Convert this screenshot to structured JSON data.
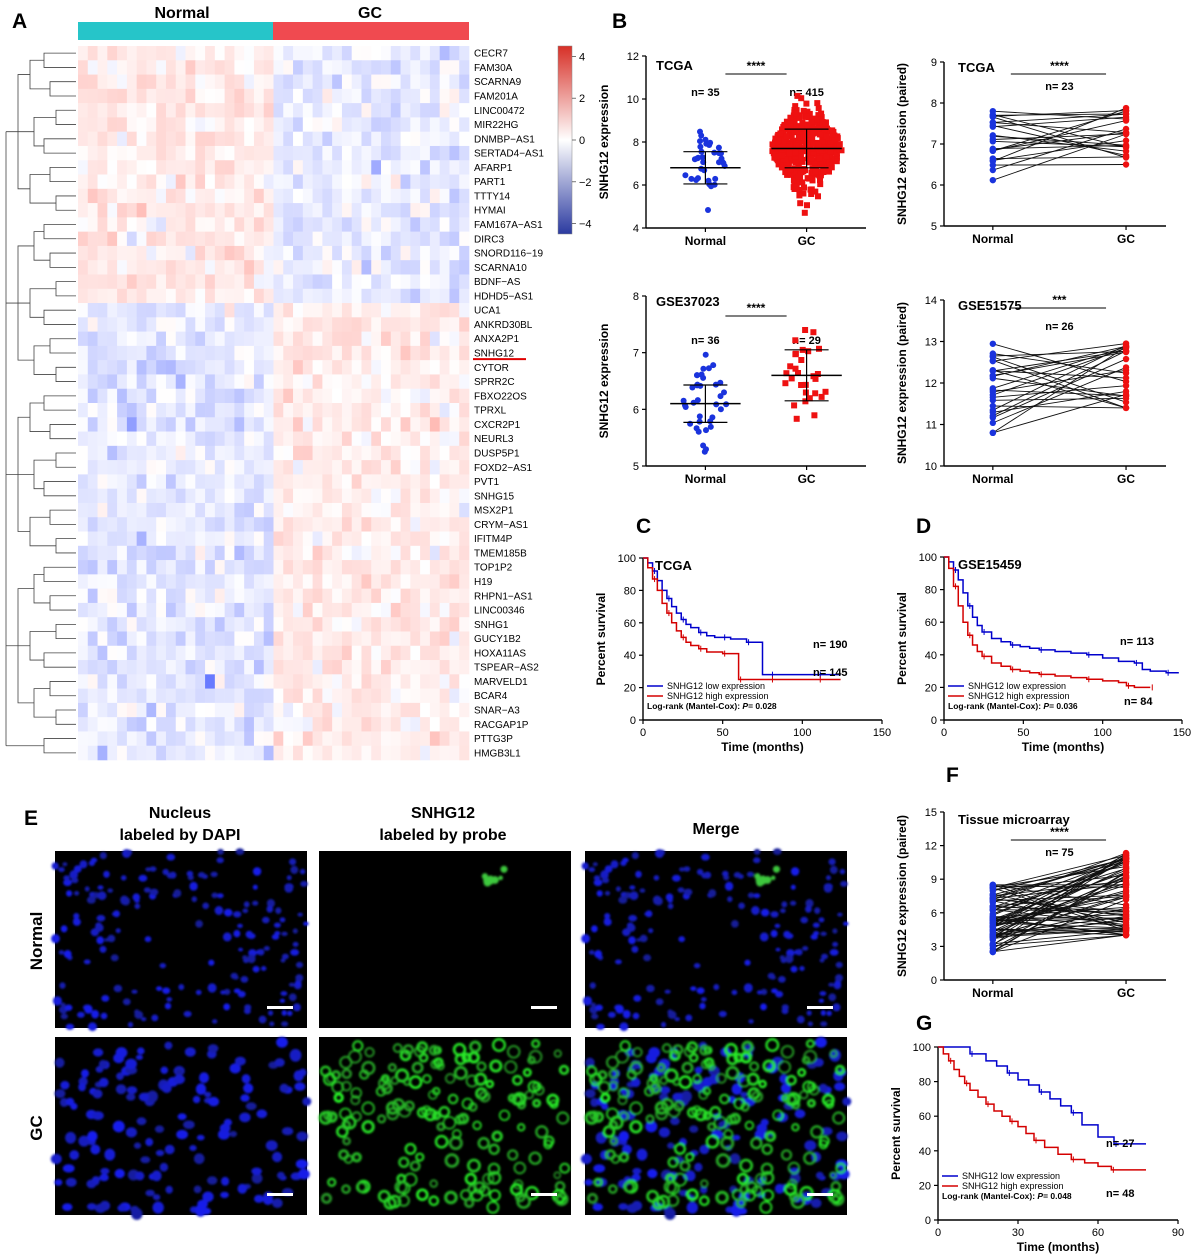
{
  "colors": {
    "normal_bar": "#26c5c9",
    "gc_bar": "#f04a50",
    "low_blue": "#0000cc",
    "high_red": "#d40000",
    "scatter_blue": "#1a33dd",
    "scatter_red": "#ee1111"
  },
  "panels": {
    "A": "A",
    "B": "B",
    "C": "C",
    "D": "D",
    "E": "E",
    "F": "F",
    "G": "G"
  },
  "heatmap": {
    "group_normal": "Normal",
    "group_gc": "GC",
    "genes": [
      "CECR7",
      "FAM30A",
      "SCARNA9",
      "FAM201A",
      "LINC00472",
      "MIR22HG",
      "DNMBP−AS1",
      "SERTAD4−AS1",
      "AFARP1",
      "PART1",
      "TTTY14",
      "HYMAI",
      "FAM167A−AS1",
      "DIRC3",
      "SNORD116−19",
      "SCARNA10",
      "BDNF−AS",
      "HDHD5−AS1",
      "UCA1",
      "ANKRD30BL",
      "ANXA2P1",
      "SNHG12",
      "CYTOR",
      "SPRR2C",
      "FBXO22OS",
      "TPRXL",
      "CXCR2P1",
      "NEURL3",
      "DUSP5P1",
      "FOXD2−AS1",
      "PVT1",
      "SNHG15",
      "MSX2P1",
      "CRYM−AS1",
      "IFITM4P",
      "TMEM185B",
      "TOP1P2",
      "H19",
      "RHPN1−AS1",
      "LINC00346",
      "SNHG1",
      "GUCY1B2",
      "HOXA11AS",
      "TSPEAR−AS2",
      "MARVELD1",
      "BCAR4",
      "SNAR−A3",
      "RACGAP1P",
      "PTTG3P",
      "HMGB3L1"
    ],
    "highlight_gene": "SNHG12",
    "colorbar_ticks": [
      "4",
      "2",
      "0",
      "−2",
      "−4"
    ]
  },
  "chart_data": [
    {
      "id": "B1",
      "type": "scatter",
      "title": "TCGA",
      "ylabel": "SNHG12 expression",
      "categories": [
        "Normal",
        "GC"
      ],
      "ylim": [
        4,
        12
      ],
      "yticks": [
        "4",
        "6",
        "8",
        "10",
        "12"
      ],
      "n_labels": [
        "n= 35",
        "n= 415"
      ],
      "significance": "****",
      "series": [
        {
          "name": "Normal",
          "n": 35,
          "mean": 6.8,
          "sd": 0.75
        },
        {
          "name": "GC",
          "n": 415,
          "mean": 7.7,
          "sd": 0.9
        }
      ]
    },
    {
      "id": "B2",
      "type": "line",
      "title": "TCGA",
      "ylabel": "SNHG12 expression (paired)",
      "categories": [
        "Normal",
        "GC"
      ],
      "ylim": [
        5,
        9
      ],
      "yticks": [
        "5",
        "6",
        "7",
        "8",
        "9"
      ],
      "n_labels": [
        "n= 23"
      ],
      "significance": "****",
      "pairs": 23,
      "normal_range": [
        5.9,
        7.8
      ],
      "gc_range": [
        6.5,
        8.4
      ]
    },
    {
      "id": "B3",
      "type": "scatter",
      "title": "GSE37023",
      "ylabel": "SNHG12 expression",
      "categories": [
        "Normal",
        "GC"
      ],
      "ylim": [
        5,
        8
      ],
      "yticks": [
        "5",
        "6",
        "7",
        "8"
      ],
      "n_labels": [
        "n= 36",
        "n= 29"
      ],
      "significance": "****",
      "series": [
        {
          "name": "Normal",
          "n": 36,
          "mean": 6.1,
          "sd": 0.33
        },
        {
          "name": "GC",
          "n": 29,
          "mean": 6.6,
          "sd": 0.45
        }
      ]
    },
    {
      "id": "B4",
      "type": "line",
      "title": "GSE51575",
      "ylabel": "SNHG12 expression (paired)",
      "categories": [
        "Normal",
        "GC"
      ],
      "ylim": [
        10,
        14
      ],
      "yticks": [
        "10",
        "11",
        "12",
        "13",
        "14"
      ],
      "n_labels": [
        "n= 26"
      ],
      "significance": "***",
      "pairs": 26,
      "normal_range": [
        10.8,
        13.0
      ],
      "gc_range": [
        11.4,
        13.2
      ]
    },
    {
      "id": "C",
      "type": "line",
      "title": "TCGA",
      "xlabel": "Time (months)",
      "ylabel": "Percent survival",
      "xlim": [
        0,
        150
      ],
      "ylim": [
        0,
        100
      ],
      "xticks": [
        "0",
        "50",
        "100",
        "150"
      ],
      "yticks": [
        "0",
        "20",
        "40",
        "60",
        "80",
        "100"
      ],
      "n_labels": [
        "n= 190",
        "n= 145"
      ],
      "legend": [
        "SNHG12 low expression",
        "SNHG12 high expression"
      ],
      "logrank_label": "Log-rank (Mantel-Cox):",
      "p_label": "P",
      "p_value": "= 0.028",
      "series": [
        {
          "name": "SNHG12 low expression",
          "x": [
            0,
            3,
            6,
            9,
            12,
            15,
            18,
            21,
            24,
            27,
            30,
            35,
            40,
            45,
            50,
            55,
            60,
            65,
            70,
            75,
            80,
            90,
            100,
            110,
            120,
            124
          ],
          "y": [
            100,
            97,
            92,
            86,
            80,
            75,
            70,
            66,
            62,
            59,
            57,
            54,
            52,
            51,
            51,
            50,
            50,
            48,
            48,
            28,
            28,
            28,
            28,
            28,
            28,
            28
          ]
        },
        {
          "name": "SNHG12 high expression",
          "x": [
            0,
            3,
            6,
            9,
            12,
            15,
            18,
            21,
            24,
            27,
            30,
            35,
            40,
            45,
            50,
            55,
            58,
            60,
            65,
            70,
            80,
            90,
            100,
            110,
            120,
            124
          ],
          "y": [
            100,
            94,
            87,
            80,
            72,
            66,
            60,
            55,
            51,
            48,
            46,
            44,
            42,
            42,
            41,
            41,
            41,
            25,
            25,
            25,
            25,
            25,
            25,
            25,
            25,
            25
          ]
        }
      ]
    },
    {
      "id": "D",
      "type": "line",
      "title": "GSE15459",
      "xlabel": "Time (months)",
      "ylabel": "Percent survival",
      "xlim": [
        0,
        150
      ],
      "ylim": [
        0,
        100
      ],
      "xticks": [
        "0",
        "50",
        "100",
        "150"
      ],
      "yticks": [
        "0",
        "20",
        "40",
        "60",
        "80",
        "100"
      ],
      "n_labels": [
        "n= 113",
        "n= 84"
      ],
      "legend": [
        "SNHG12 low expression",
        "SNHG12 high expression"
      ],
      "logrank_label": "Log-rank (Mantel-Cox):",
      "p_label": "P",
      "p_value": "= 0.036",
      "series": [
        {
          "name": "SNHG12 low expression",
          "x": [
            0,
            3,
            6,
            9,
            12,
            15,
            18,
            21,
            24,
            30,
            36,
            42,
            48,
            54,
            60,
            70,
            80,
            90,
            100,
            110,
            120,
            125,
            130,
            140,
            148
          ],
          "y": [
            100,
            97,
            92,
            86,
            78,
            70,
            63,
            58,
            54,
            50,
            48,
            46,
            45,
            44,
            43,
            42,
            41,
            40,
            38,
            36,
            35,
            31,
            30,
            29,
            29
          ]
        },
        {
          "name": "SNHG12 high expression",
          "x": [
            0,
            3,
            6,
            9,
            12,
            15,
            18,
            21,
            24,
            30,
            36,
            42,
            48,
            54,
            60,
            70,
            80,
            90,
            100,
            110,
            115,
            120,
            125,
            130
          ],
          "y": [
            100,
            93,
            82,
            70,
            60,
            52,
            46,
            42,
            39,
            35,
            33,
            31,
            30,
            29,
            28,
            27,
            26,
            25,
            24,
            23,
            21,
            20,
            20,
            20
          ]
        }
      ]
    },
    {
      "id": "F",
      "type": "line",
      "title": "Tissue microarray",
      "ylabel": "SNHG12 expression (paired)",
      "categories": [
        "Normal",
        "GC"
      ],
      "ylim": [
        0,
        15
      ],
      "yticks": [
        "0",
        "3",
        "6",
        "9",
        "12",
        "15"
      ],
      "n_labels": [
        "n= 75"
      ],
      "significance": "****",
      "pairs": 75,
      "normal_range": [
        2.5,
        8.5
      ],
      "gc_range": [
        4.0,
        12.0
      ]
    },
    {
      "id": "G",
      "type": "line",
      "xlabel": "Time (months)",
      "ylabel": "Percent survival",
      "xlim": [
        0,
        90
      ],
      "ylim": [
        0,
        100
      ],
      "xticks": [
        "0",
        "30",
        "60",
        "90"
      ],
      "yticks": [
        "0",
        "20",
        "40",
        "60",
        "80",
        "100"
      ],
      "n_labels": [
        "n= 27",
        "n= 48"
      ],
      "legend": [
        "SNHG12 low expression",
        "SNHG12 high expression"
      ],
      "logrank_label": "Log-rank (Mantel-Cox):",
      "p_label": "P",
      "p_value": "= 0.048",
      "series": [
        {
          "name": "SNHG12 low expression",
          "x": [
            0,
            10,
            12,
            18,
            22,
            26,
            30,
            34,
            38,
            42,
            46,
            50,
            54,
            60,
            66,
            70,
            78
          ],
          "y": [
            100,
            100,
            96,
            92,
            89,
            85,
            81,
            78,
            74,
            70,
            66,
            62,
            55,
            48,
            44,
            44,
            44
          ]
        },
        {
          "name": "SNHG12 high expression",
          "x": [
            0,
            2,
            4,
            6,
            8,
            10,
            12,
            15,
            18,
            21,
            24,
            27,
            30,
            33,
            36,
            40,
            45,
            50,
            55,
            60,
            65,
            70,
            78
          ],
          "y": [
            100,
            96,
            92,
            87,
            83,
            79,
            75,
            71,
            67,
            63,
            60,
            57,
            54,
            50,
            46,
            42,
            38,
            35,
            33,
            31,
            29,
            29,
            29
          ]
        }
      ]
    }
  ],
  "panel_e": {
    "col_titles": [
      [
        "Nucleus",
        "labeled by DAPI"
      ],
      [
        "SNHG12",
        "labeled by probe"
      ],
      [
        "Merge"
      ]
    ],
    "row_labels": [
      "Normal",
      "GC"
    ]
  }
}
